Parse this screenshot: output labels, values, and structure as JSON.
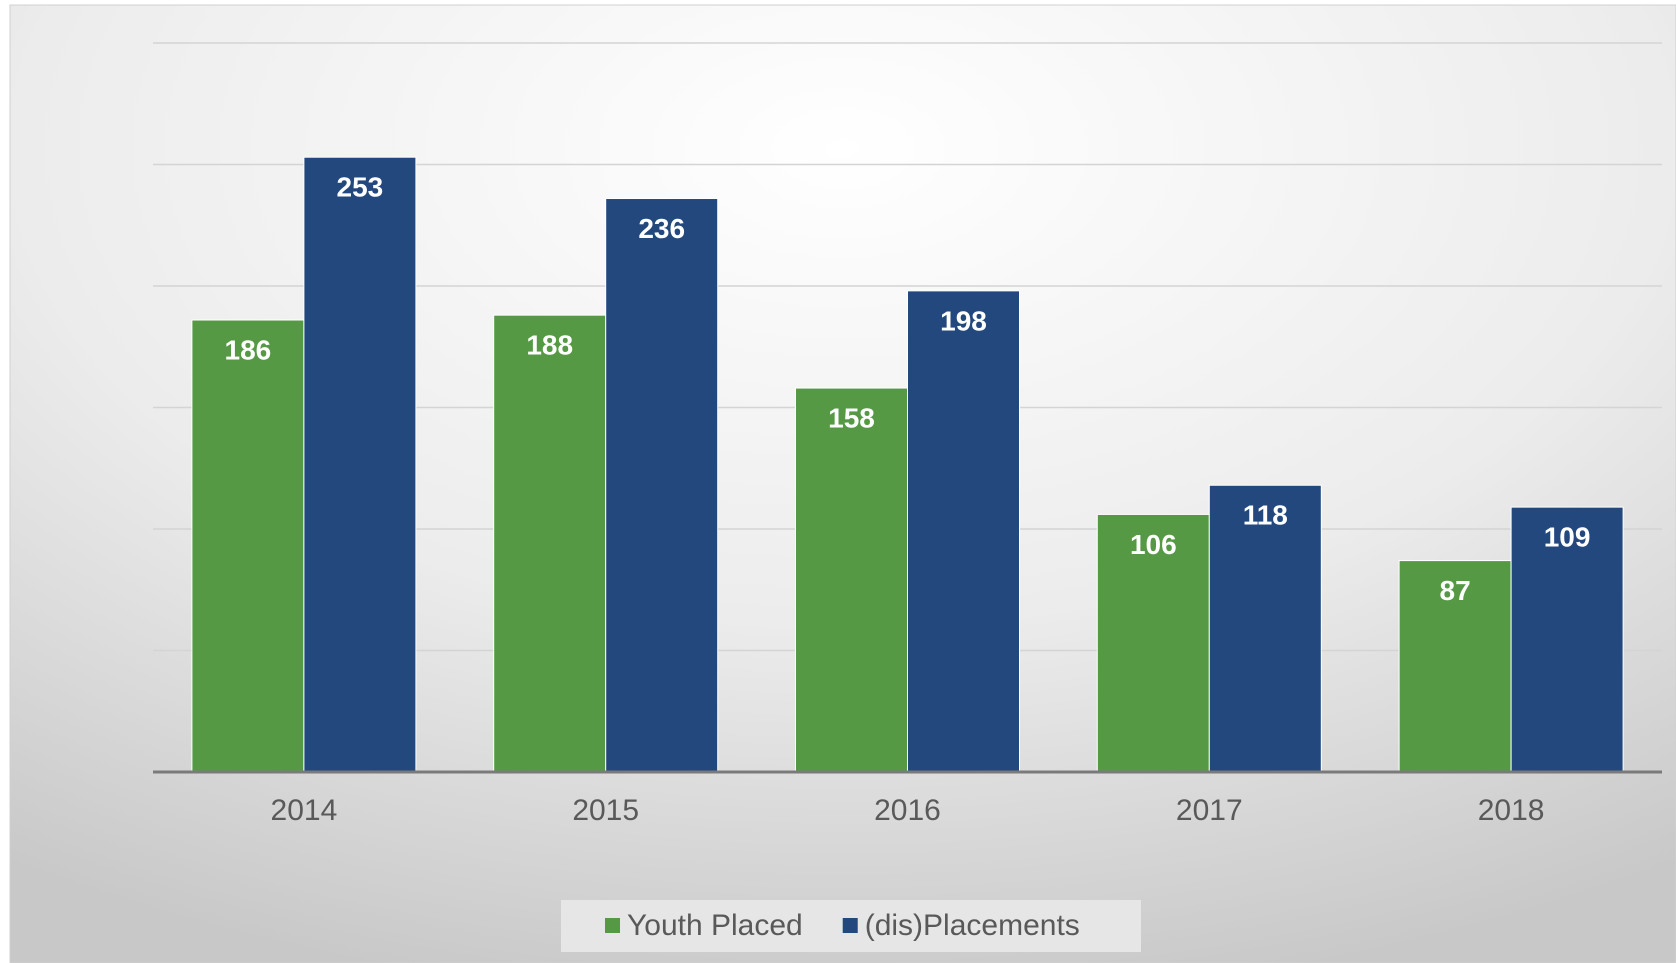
{
  "chart_data": {
    "type": "bar",
    "categories": [
      "2014",
      "2015",
      "2016",
      "2017",
      "2018"
    ],
    "series": [
      {
        "name": "Youth Placed",
        "color": "#559944",
        "values": [
          186,
          188,
          158,
          106,
          87
        ]
      },
      {
        "name": "(dis)Placements",
        "color": "#22487e",
        "values": [
          253,
          236,
          198,
          118,
          109
        ]
      }
    ],
    "ylim": [
      0,
      300
    ],
    "yticks": [
      0,
      50,
      100,
      150,
      200,
      250,
      300
    ],
    "grid": true,
    "show_ytick_labels": false,
    "legend": "bottom"
  }
}
